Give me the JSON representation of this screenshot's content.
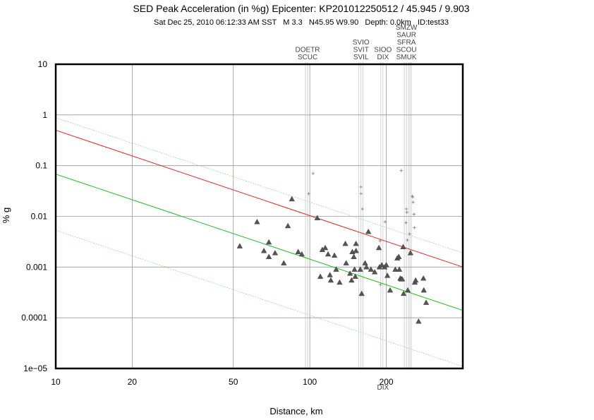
{
  "header": {
    "title": "SED Peak Acceleration (in %g) Epicenter: KP201012250512 / 45.945 / 9.903",
    "subtitle": "Sat Dec 25, 2010 06:12:33 AM SST   M 3.3   N45.95 W9.90   Depth: 0.0km   ID:test33"
  },
  "chart_data": {
    "type": "scatter",
    "title": "SED Peak Acceleration (in %g) Epicenter: KP201012250512 / 45.945 / 9.903",
    "xlabel": "Distance, km",
    "ylabel": "% g",
    "xscale": "log",
    "yscale": "log",
    "xlim": [
      10,
      400
    ],
    "ylim": [
      1e-05,
      10
    ],
    "grid": true,
    "colors": {
      "median_curve": "#ee2222",
      "lower_curve": "#22bb22",
      "upper_band": "#88dd88",
      "lower_band": "#88dd88",
      "triangles": "#555555",
      "crosses": "#888888",
      "station_lines": "#c8c8c8"
    },
    "x_ticks": [
      {
        "value": 10,
        "label": "10"
      },
      {
        "value": 20,
        "label": "20"
      },
      {
        "value": 50,
        "label": "50"
      },
      {
        "value": 100,
        "label": "100"
      },
      {
        "value": 200,
        "label": "200"
      }
    ],
    "y_ticks": [
      {
        "value": 10,
        "label": "10"
      },
      {
        "value": 1,
        "label": "1"
      },
      {
        "value": 0.1,
        "label": "0.1"
      },
      {
        "value": 0.01,
        "label": "0.01"
      },
      {
        "value": 0.001,
        "label": "0.001"
      },
      {
        "value": 0.0001,
        "label": "0.0001"
      },
      {
        "value": 1e-05,
        "label": "1e−05"
      }
    ],
    "curves": [
      {
        "name": "",
        "style": "median",
        "x": [
          10,
          400
        ],
        "y": [
          0.5,
          0.001
        ]
      },
      {
        "name": "",
        "style": "lower",
        "x": [
          10,
          400
        ],
        "y": [
          0.068,
          0.00014
        ]
      },
      {
        "name": "",
        "style": "upper_band",
        "x": [
          10,
          400
        ],
        "y": [
          0.88,
          0.0019
        ]
      },
      {
        "name": "",
        "style": "lower_band",
        "x": [
          10,
          400
        ],
        "y": [
          0.0053,
          1.1e-05
        ]
      }
    ],
    "triangles": [
      [
        53,
        0.0026
      ],
      [
        62,
        0.0078
      ],
      [
        66,
        0.0021
      ],
      [
        69,
        0.0031
      ],
      [
        69,
        0.0016
      ],
      [
        73,
        0.0019
      ],
      [
        79,
        0.0012
      ],
      [
        82,
        0.0065
      ],
      [
        85,
        0.022
      ],
      [
        90,
        0.002
      ],
      [
        93,
        0.0018
      ],
      [
        107,
        0.0093
      ],
      [
        110,
        0.00065
      ],
      [
        112,
        0.0022
      ],
      [
        115,
        0.0024
      ],
      [
        118,
        0.0018
      ],
      [
        120,
        0.0007
      ],
      [
        121,
        0.00055
      ],
      [
        125,
        0.0017
      ],
      [
        127,
        0.0009
      ],
      [
        131,
        0.0005
      ],
      [
        138,
        0.0029
      ],
      [
        139,
        0.0012
      ],
      [
        144,
        0.00075
      ],
      [
        146,
        0.00055
      ],
      [
        147,
        0.002
      ],
      [
        149,
        0.0016
      ],
      [
        150,
        0.0009
      ],
      [
        151,
        0.00065
      ],
      [
        152,
        0.0029
      ],
      [
        152,
        0.0021
      ],
      [
        158,
        0.0009
      ],
      [
        160,
        0.0003
      ],
      [
        165,
        0.0012
      ],
      [
        167,
        0.001
      ],
      [
        170,
        0.005
      ],
      [
        174,
        0.0009
      ],
      [
        180,
        0.0008
      ],
      [
        187,
        0.0024
      ],
      [
        188,
        0.001
      ],
      [
        192,
        0.0011
      ],
      [
        197,
        0.001
      ],
      [
        200,
        0.0011
      ],
      [
        202,
        0.00068
      ],
      [
        207,
        0.00035
      ],
      [
        217,
        0.0009
      ],
      [
        221,
        0.0015
      ],
      [
        224,
        0.0016
      ],
      [
        225,
        0.0009
      ],
      [
        227,
        0.0006
      ],
      [
        229,
        0.00058
      ],
      [
        231,
        0.00058
      ],
      [
        233,
        0.0025
      ],
      [
        234,
        0.0003
      ],
      [
        243,
        0.00035
      ],
      [
        249,
        0.0019
      ],
      [
        259,
        0.0005
      ],
      [
        261,
        0.00055
      ],
      [
        268,
        8.5e-05
      ],
      [
        280,
        0.0006
      ],
      [
        281,
        0.00035
      ],
      [
        287,
        0.0002
      ]
    ],
    "crosses": [
      [
        99,
        0.028
      ],
      [
        103,
        0.07
      ],
      [
        159,
        0.038
      ],
      [
        159,
        0.028
      ],
      [
        161,
        0.014
      ],
      [
        189,
        0.0033
      ],
      [
        190,
        0.00045
      ],
      [
        198,
        0.0078
      ],
      [
        229,
        0.08
      ],
      [
        239,
        0.0075
      ],
      [
        240,
        0.014
      ],
      [
        241,
        0.012
      ],
      [
        242,
        0.0034
      ],
      [
        247,
        0.0045
      ],
      [
        253,
        0.025
      ],
      [
        254,
        0.024
      ],
      [
        255,
        0.019
      ],
      [
        257,
        0.011
      ],
      [
        258,
        0.006
      ]
    ],
    "stations": [
      {
        "labels": [
          "DOETR",
          "SCUC"
        ],
        "x": 98
      },
      {
        "labels": [
          "SVIO",
          "SVIT",
          "SVIL"
        ],
        "x": 159
      },
      {
        "labels": [
          "SIOO",
          "DIX"
        ],
        "x": 194
      },
      {
        "labels": [
          "SMZW",
          "SAUR",
          "SFRA",
          "SCOU",
          "SMUK"
        ],
        "x": 240
      }
    ],
    "bottom_station_label": {
      "label": "DIX",
      "x": 194
    }
  }
}
